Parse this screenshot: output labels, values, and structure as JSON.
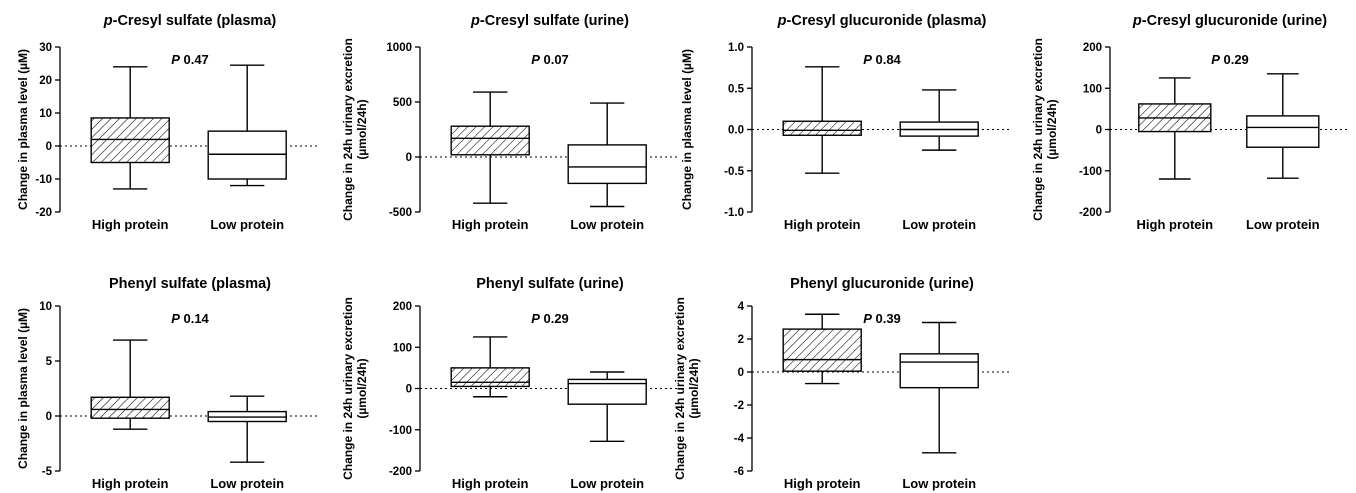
{
  "colors": {
    "ink": "#000000",
    "hatch_fill": "#ffffff",
    "open_fill": "#ffffff"
  },
  "chart_data": [
    {
      "type": "box",
      "title": "p-Cresyl sulfate (plasma)",
      "title_italic_prefix": "p",
      "title_rest": "-Cresyl sulfate (plasma)",
      "ylabel": "Change in plasma level (µM)",
      "ylabel_line2": "",
      "ylim": [
        -20,
        30
      ],
      "yticks": [
        -20,
        -10,
        0,
        10,
        20,
        30
      ],
      "ytick_labels": [
        "-20",
        "-10",
        "0",
        "10",
        "20",
        "30"
      ],
      "p_label": "P",
      "p_value": "0.47",
      "categories": [
        "High protein",
        "Low protein"
      ],
      "boxes": [
        {
          "min": -13,
          "q1": -5,
          "median": 2,
          "q3": 8.5,
          "max": 24,
          "hatched": true
        },
        {
          "min": -12,
          "q1": -10,
          "median": -2.5,
          "q3": 4.5,
          "max": 24.5,
          "hatched": false
        }
      ]
    },
    {
      "type": "box",
      "title": "p-Cresyl sulfate (urine)",
      "title_italic_prefix": "p",
      "title_rest": "-Cresyl sulfate (urine)",
      "ylabel": "Change in 24h urinary excretion",
      "ylabel_line2": "(µmol/24h)",
      "ylim": [
        -500,
        1000
      ],
      "yticks": [
        -500,
        0,
        500,
        1000
      ],
      "ytick_labels": [
        "-500",
        "0",
        "500",
        "1000"
      ],
      "p_label": "P",
      "p_value": "0.07",
      "categories": [
        "High protein",
        "Low protein"
      ],
      "boxes": [
        {
          "min": -420,
          "q1": 20,
          "median": 170,
          "q3": 280,
          "max": 590,
          "hatched": true
        },
        {
          "min": -450,
          "q1": -240,
          "median": -90,
          "q3": 110,
          "max": 490,
          "hatched": false
        }
      ]
    },
    {
      "type": "box",
      "title": "p-Cresyl glucuronide (plasma)",
      "title_italic_prefix": "p",
      "title_rest": "-Cresyl glucuronide (plasma)",
      "ylabel": "Change in plasma level (µM)",
      "ylabel_line2": "",
      "ylim": [
        -1.0,
        1.0
      ],
      "yticks": [
        -1.0,
        -0.5,
        0.0,
        0.5,
        1.0
      ],
      "ytick_labels": [
        "-1.0",
        "-0.5",
        "0.0",
        "0.5",
        "1.0"
      ],
      "p_label": "P",
      "p_value": "0.84",
      "categories": [
        "High protein",
        "Low protein"
      ],
      "boxes": [
        {
          "min": -0.53,
          "q1": -0.07,
          "median": -0.01,
          "q3": 0.1,
          "max": 0.76,
          "hatched": true
        },
        {
          "min": -0.25,
          "q1": -0.08,
          "median": 0.0,
          "q3": 0.09,
          "max": 0.48,
          "hatched": false
        }
      ]
    },
    {
      "type": "box",
      "title": "p-Cresyl glucuronide (urine)",
      "title_italic_prefix": "p",
      "title_rest": "-Cresyl glucuronide (urine)",
      "ylabel": "Change in 24h urinary excretion",
      "ylabel_line2": "(µmol/24h)",
      "ylim": [
        -200,
        200
      ],
      "yticks": [
        -200,
        -100,
        0,
        100,
        200
      ],
      "ytick_labels": [
        "-200",
        "-100",
        "0",
        "100",
        "200"
      ],
      "p_label": "P",
      "p_value": "0.29",
      "categories": [
        "High protein",
        "Low protein"
      ],
      "boxes": [
        {
          "min": -120,
          "q1": -5,
          "median": 28,
          "q3": 62,
          "max": 125,
          "hatched": true
        },
        {
          "min": -118,
          "q1": -43,
          "median": 5,
          "q3": 33,
          "max": 135,
          "hatched": false
        }
      ]
    },
    {
      "type": "box",
      "title": "Phenyl sulfate (plasma)",
      "title_italic_prefix": "",
      "title_rest": "Phenyl sulfate (plasma)",
      "ylabel": "Change in plasma level (µM)",
      "ylabel_line2": "",
      "ylim": [
        -5,
        10
      ],
      "yticks": [
        -5,
        0,
        5,
        10
      ],
      "ytick_labels": [
        "-5",
        "0",
        "5",
        "10"
      ],
      "p_label": "P",
      "p_value": "0.14",
      "categories": [
        "High protein",
        "Low protein"
      ],
      "boxes": [
        {
          "min": -1.2,
          "q1": -0.2,
          "median": 0.6,
          "q3": 1.7,
          "max": 6.9,
          "hatched": true
        },
        {
          "min": -4.2,
          "q1": -0.5,
          "median": -0.1,
          "q3": 0.4,
          "max": 1.8,
          "hatched": false
        }
      ]
    },
    {
      "type": "box",
      "title": "Phenyl sulfate (urine)",
      "title_italic_prefix": "",
      "title_rest": "Phenyl sulfate (urine)",
      "ylabel": "Change in 24h urinary excretion",
      "ylabel_line2": "(µmol/24h)",
      "ylim": [
        -200,
        200
      ],
      "yticks": [
        -200,
        -100,
        0,
        100,
        200
      ],
      "ytick_labels": [
        "-200",
        "-100",
        "0",
        "100",
        "200"
      ],
      "p_label": "P",
      "p_value": "0.29",
      "categories": [
        "High protein",
        "Low protein"
      ],
      "boxes": [
        {
          "min": -20,
          "q1": 5,
          "median": 15,
          "q3": 50,
          "max": 125,
          "hatched": true
        },
        {
          "min": -128,
          "q1": -38,
          "median": 12,
          "q3": 22,
          "max": 40,
          "hatched": false
        }
      ]
    },
    {
      "type": "box",
      "title": "Phenyl glucuronide (urine)",
      "title_italic_prefix": "",
      "title_rest": "Phenyl glucuronide (urine)",
      "ylabel": "Change in 24h urinary excretion",
      "ylabel_line2": "(µmol/24h)",
      "ylim": [
        -6,
        4
      ],
      "yticks": [
        -6,
        -4,
        -2,
        0,
        2,
        4
      ],
      "ytick_labels": [
        "-6",
        "-4",
        "-2",
        "0",
        "2",
        "4"
      ],
      "p_label": "P",
      "p_value": "0.39",
      "categories": [
        "High protein",
        "Low protein"
      ],
      "boxes": [
        {
          "min": -0.7,
          "q1": 0.05,
          "median": 0.75,
          "q3": 2.6,
          "max": 3.5,
          "hatched": true
        },
        {
          "min": -4.9,
          "q1": -0.95,
          "median": 0.6,
          "q3": 1.1,
          "max": 3.0,
          "hatched": false
        }
      ]
    }
  ]
}
